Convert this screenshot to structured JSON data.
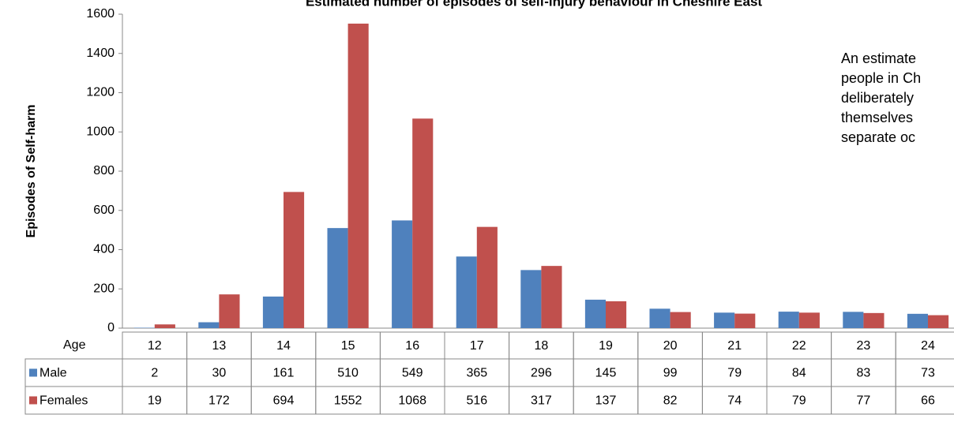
{
  "chart_data": {
    "type": "bar",
    "title": "Estimated number of episodes of self-injury behaviour in Cheshire East",
    "y_label": "Episodes of Self-harm",
    "x_label": "Age",
    "categories": [
      "12",
      "13",
      "14",
      "15",
      "16",
      "17",
      "18",
      "19",
      "20",
      "21",
      "22",
      "23",
      "24"
    ],
    "series": [
      {
        "name": "Male",
        "color": "#4f81bd",
        "values": [
          2,
          30,
          161,
          510,
          549,
          365,
          296,
          145,
          99,
          79,
          84,
          83,
          73
        ]
      },
      {
        "name": "Females",
        "color": "#c0504d",
        "values": [
          19,
          172,
          694,
          1552,
          1068,
          516,
          317,
          137,
          82,
          74,
          79,
          77,
          66
        ]
      }
    ],
    "ylim": [
      0,
      1600
    ],
    "yticks": [
      0,
      200,
      400,
      600,
      800,
      1000,
      1200,
      1400,
      1600
    ],
    "grid": false,
    "annotation": [
      "An estimate",
      "people in Ch",
      "deliberately",
      "themselves",
      "separate oc"
    ]
  }
}
